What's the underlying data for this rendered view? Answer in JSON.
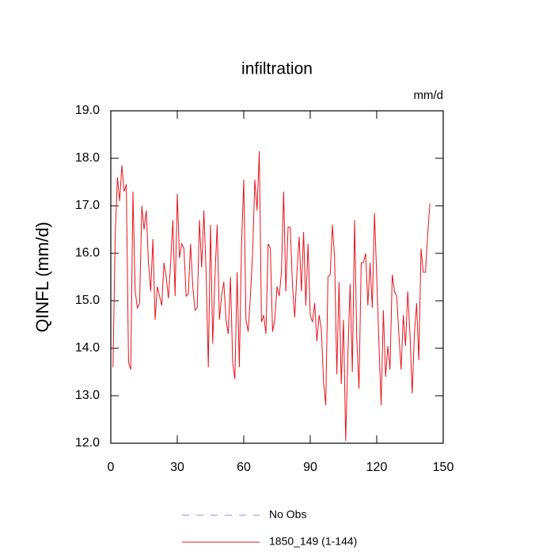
{
  "chart_data": {
    "type": "line",
    "title": "infiltration",
    "units": "mm/d",
    "y_label": "QINFL  (mm/d)",
    "x": [
      1,
      2,
      3,
      4,
      5,
      6,
      7,
      8,
      9,
      10,
      11,
      12,
      13,
      14,
      15,
      16,
      17,
      18,
      19,
      20,
      21,
      22,
      23,
      24,
      25,
      26,
      27,
      28,
      29,
      30,
      31,
      32,
      33,
      34,
      35,
      36,
      37,
      38,
      39,
      40,
      41,
      42,
      43,
      44,
      45,
      46,
      47,
      48,
      49,
      50,
      51,
      52,
      53,
      54,
      55,
      56,
      57,
      58,
      59,
      60,
      61,
      62,
      63,
      64,
      65,
      66,
      67,
      68,
      69,
      70,
      71,
      72,
      73,
      74,
      75,
      76,
      77,
      78,
      79,
      80,
      81,
      82,
      83,
      84,
      85,
      86,
      87,
      88,
      89,
      90,
      91,
      92,
      93,
      94,
      95,
      96,
      97,
      98,
      99,
      100,
      101,
      102,
      103,
      104,
      105,
      106,
      107,
      108,
      109,
      110,
      111,
      112,
      113,
      114,
      115,
      116,
      117,
      118,
      119,
      120,
      121,
      122,
      123,
      124,
      125,
      126,
      127,
      128,
      129,
      130,
      131,
      132,
      133,
      134,
      135,
      136,
      137,
      138,
      139,
      140,
      141,
      142,
      143,
      144
    ],
    "series": [
      {
        "name": "1850_149 (1-144)",
        "color": "#e8141c",
        "values": [
          13.6,
          16.4,
          17.6,
          17.1,
          17.85,
          17.3,
          17.45,
          13.7,
          13.55,
          17.3,
          15.2,
          14.85,
          14.95,
          17.0,
          16.5,
          16.9,
          15.8,
          15.2,
          16.3,
          14.6,
          15.3,
          15.1,
          14.9,
          15.8,
          15.5,
          15.05,
          15.8,
          16.7,
          15.1,
          17.25,
          15.9,
          16.2,
          16.1,
          15.1,
          15.15,
          16.2,
          15.3,
          14.8,
          14.85,
          16.7,
          15.7,
          16.9,
          15.6,
          13.6,
          16.6,
          14.1,
          15.5,
          16.6,
          14.6,
          15.1,
          15.4,
          14.6,
          14.3,
          15.5,
          13.7,
          13.35,
          15.6,
          13.6,
          16.2,
          17.55,
          14.6,
          14.35,
          15.1,
          16.0,
          17.55,
          16.9,
          18.15,
          14.55,
          14.7,
          14.3,
          16.2,
          16.1,
          14.35,
          14.6,
          15.3,
          15.1,
          15.6,
          17.3,
          15.2,
          16.55,
          16.55,
          15.3,
          14.65,
          15.6,
          16.35,
          15.2,
          16.45,
          14.9,
          16.2,
          14.7,
          14.55,
          14.95,
          14.15,
          14.7,
          14.4,
          13.3,
          12.8,
          15.5,
          15.55,
          16.6,
          15.9,
          13.45,
          15.4,
          13.25,
          14.6,
          12.05,
          13.9,
          15.35,
          13.5,
          16.7,
          14.2,
          13.15,
          15.8,
          15.8,
          16.0,
          14.9,
          15.8,
          14.85,
          16.85,
          15.5,
          14.1,
          12.8,
          14.8,
          13.4,
          14.05,
          13.55,
          15.55,
          15.2,
          15.1,
          14.3,
          13.55,
          14.7,
          14.05,
          15.2,
          14.3,
          13.05,
          14.3,
          14.95,
          13.75,
          16.1,
          15.6,
          15.6,
          16.4,
          17.05
        ]
      }
    ],
    "legend_entries": [
      {
        "label": "No Obs",
        "color": "#8a8aff",
        "dashed": true
      }
    ],
    "xlim": [
      0,
      150
    ],
    "xticks": [
      0,
      30,
      60,
      90,
      120,
      150
    ],
    "ylim": [
      12,
      19
    ],
    "yticks": [
      {
        "value": 12,
        "label": "12.0"
      },
      {
        "value": 13,
        "label": "13.0"
      },
      {
        "value": 14,
        "label": "14.0"
      },
      {
        "value": 15,
        "label": "15.0"
      },
      {
        "value": 16,
        "label": "16.0"
      },
      {
        "value": 17,
        "label": "17.0"
      },
      {
        "value": 18,
        "label": "18.0"
      },
      {
        "value": 19,
        "label": "19.0"
      }
    ]
  }
}
